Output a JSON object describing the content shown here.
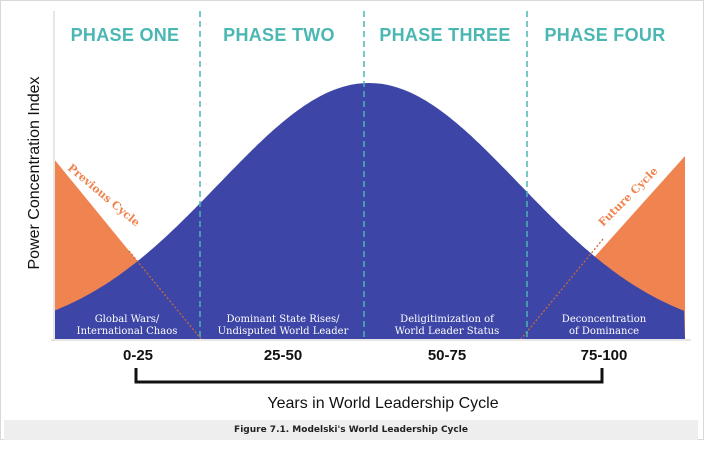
{
  "phases": [
    "PHASE ONE",
    "PHASE TWO",
    "PHASE THREE",
    "PHASE FOUR"
  ],
  "periods": [
    "0-25",
    "25-50",
    "50-75",
    "75-100"
  ],
  "descriptions": [
    [
      "Global Wars/",
      "International Chaos"
    ],
    [
      "Dominant State Rises/",
      "Undisputed World Leader"
    ],
    [
      "Deligitimization of",
      "World Leader Status"
    ],
    [
      "Deconcentration",
      "of Dominance"
    ]
  ],
  "labels": {
    "previous_cycle": "Previous Cycle",
    "future_cycle": "Future Cycle"
  },
  "axis": {
    "y_title": "Power Concentration Index",
    "x_title": "Years in World Leadership Cycle"
  },
  "caption": "Figure 7.1. Modelski's World Leadership Cycle",
  "colors": {
    "curve": "#3d45a6",
    "cycle_fill": "#ef8450",
    "phase_text": "#4ab7b3",
    "divider": "#4ab7b3"
  }
}
